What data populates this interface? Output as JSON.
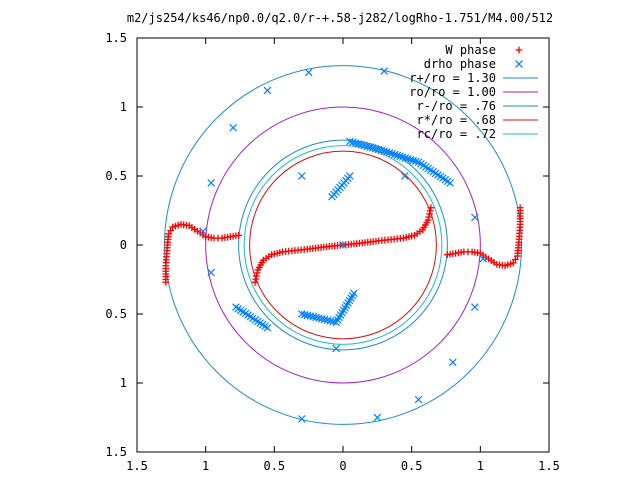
{
  "chart_data": {
    "type": "scatter",
    "title": "m2/js254/ks46/np0.0/q2.0/r-+.58-j282/logRho-1.751/M4.00/512",
    "xlabel": "",
    "ylabel": "",
    "xlim": [
      -1.5,
      1.5
    ],
    "ylim": [
      -1.5,
      1.5
    ],
    "x_tick_labels": [
      "1.5",
      "1",
      "0.5",
      "0",
      "0.5",
      "1",
      "1.5"
    ],
    "y_tick_labels": [
      "1.5",
      "1",
      "0.5",
      "0",
      "0.5",
      "1",
      "1.5"
    ],
    "x_ticks": [
      -1.5,
      -1,
      -0.5,
      0,
      0.5,
      1,
      1.5
    ],
    "y_ticks": [
      1.5,
      1,
      0.5,
      0,
      -0.5,
      -1,
      -1.5
    ],
    "grid": false,
    "legend_position": "top-right",
    "series": [
      {
        "name": "W phase",
        "marker": "plus",
        "color": "#ff0000",
        "points": [
          [
            -1.29,
            -0.27
          ],
          [
            -1.29,
            -0.15
          ],
          [
            -1.28,
            -0.02
          ],
          [
            -1.27,
            0.08
          ],
          [
            -1.24,
            0.13
          ],
          [
            -1.18,
            0.15
          ],
          [
            -1.12,
            0.14
          ],
          [
            -1.06,
            0.1
          ],
          [
            -1.0,
            0.06
          ],
          [
            -0.94,
            0.05
          ],
          [
            -0.88,
            0.05
          ],
          [
            -0.82,
            0.06
          ],
          [
            -0.76,
            0.07
          ],
          [
            -0.64,
            -0.27
          ],
          [
            -0.62,
            -0.18
          ],
          [
            -0.58,
            -0.11
          ],
          [
            -0.52,
            -0.07
          ],
          [
            -0.44,
            -0.05
          ],
          [
            -0.35,
            -0.04
          ],
          [
            -0.26,
            -0.03
          ],
          [
            -0.18,
            -0.02
          ],
          [
            -0.1,
            -0.01
          ],
          [
            0.0,
            0.0
          ],
          [
            0.1,
            0.01
          ],
          [
            0.18,
            0.02
          ],
          [
            0.26,
            0.03
          ],
          [
            0.35,
            0.04
          ],
          [
            0.44,
            0.05
          ],
          [
            0.52,
            0.07
          ],
          [
            0.58,
            0.11
          ],
          [
            0.62,
            0.18
          ],
          [
            0.64,
            0.27
          ],
          [
            0.76,
            -0.07
          ],
          [
            0.82,
            -0.06
          ],
          [
            0.88,
            -0.05
          ],
          [
            0.94,
            -0.05
          ],
          [
            1.0,
            -0.06
          ],
          [
            1.06,
            -0.1
          ],
          [
            1.12,
            -0.14
          ],
          [
            1.18,
            -0.15
          ],
          [
            1.24,
            -0.13
          ],
          [
            1.27,
            -0.08
          ],
          [
            1.28,
            0.02
          ],
          [
            1.29,
            0.15
          ],
          [
            1.29,
            0.27
          ]
        ]
      },
      {
        "name": "drho phase",
        "marker": "cross",
        "color": "#0080ff",
        "points": [
          [
            -0.05,
            -0.75
          ],
          [
            0.05,
            0.75
          ],
          [
            0.3,
            0.68
          ],
          [
            0.55,
            0.6
          ],
          [
            0.78,
            0.45
          ],
          [
            0.96,
            0.2
          ],
          [
            1.02,
            -0.1
          ],
          [
            0.96,
            -0.45
          ],
          [
            0.8,
            -0.85
          ],
          [
            0.55,
            -1.12
          ],
          [
            0.25,
            -1.25
          ],
          [
            -0.3,
            -1.26
          ],
          [
            -0.3,
            -0.5
          ],
          [
            -0.05,
            -0.56
          ],
          [
            0.08,
            -0.35
          ],
          [
            0.0,
            0.0
          ],
          [
            -0.08,
            0.35
          ],
          [
            0.05,
            0.5
          ],
          [
            0.45,
            0.5
          ],
          [
            -0.3,
            0.5
          ],
          [
            -0.55,
            -0.6
          ],
          [
            -0.78,
            -0.45
          ],
          [
            -0.96,
            -0.2
          ],
          [
            -1.02,
            0.1
          ],
          [
            -0.96,
            0.45
          ],
          [
            -0.8,
            0.85
          ],
          [
            -0.55,
            1.12
          ],
          [
            -0.25,
            1.25
          ],
          [
            0.3,
            1.26
          ]
        ]
      }
    ],
    "circles": [
      {
        "name": "r+/ro = 1.30",
        "radius": 1.3,
        "color": "#1a8fc4"
      },
      {
        "name": "ro/ro = 1.00",
        "radius": 1.0,
        "color": "#a020c0"
      },
      {
        "name": "r-/ro = .76",
        "radius": 0.76,
        "color": "#1a8fc4"
      },
      {
        "name": "r*/ro = .68",
        "radius": 0.68,
        "color": "#d01010"
      },
      {
        "name": "rc/ro = .72",
        "radius": 0.72,
        "color": "#20b8c8"
      }
    ]
  }
}
